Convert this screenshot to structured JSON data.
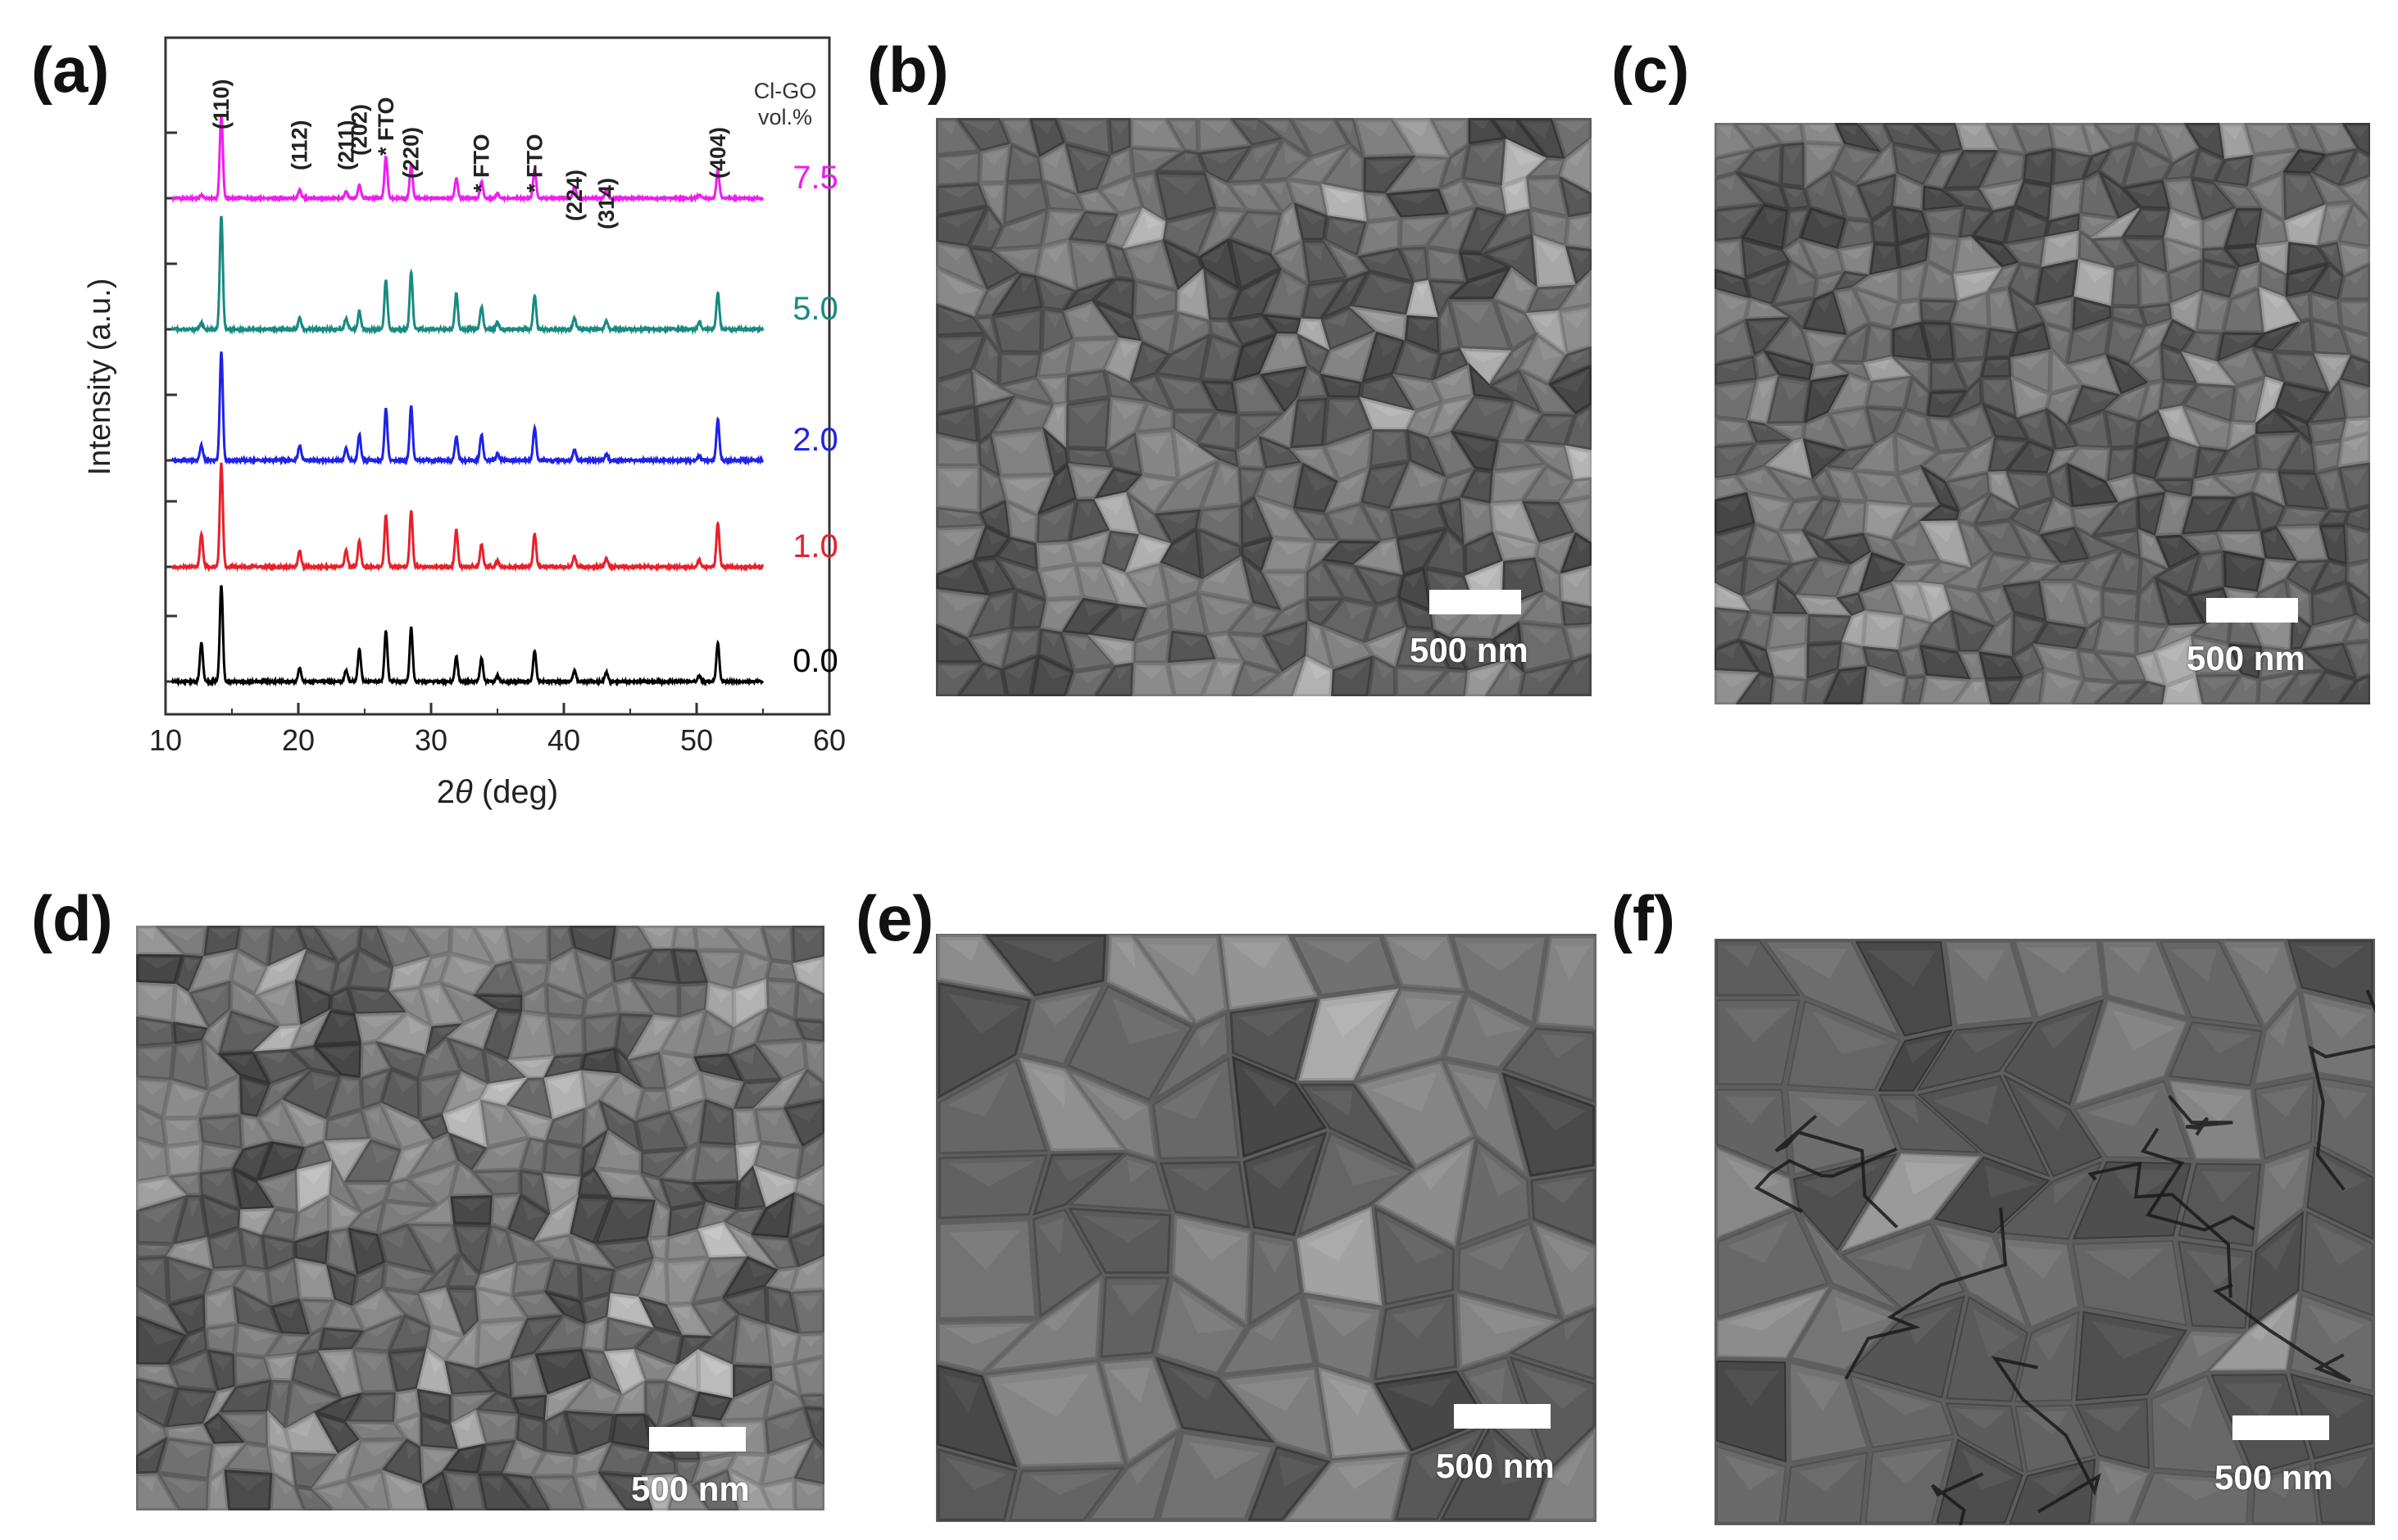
{
  "panel_labels": [
    "(a)",
    "(b)",
    "(c)",
    "(d)",
    "(e)",
    "(f)"
  ],
  "scale_bar_label": "500 nm",
  "chart_data": {
    "type": "line",
    "xlabel_prefix": "2",
    "xlabel_theta": "θ",
    "xlabel_suffix": " (deg)",
    "ylabel": "Intensity (a.u.)",
    "xlim": [
      10,
      60
    ],
    "x_ticks": [
      10,
      20,
      30,
      40,
      50,
      60
    ],
    "legend_title": [
      "Cl-GO",
      "vol.%"
    ],
    "peak_labels": [
      {
        "text": "(110)",
        "x": 14.2
      },
      {
        "text": "(112)",
        "x": 20.1
      },
      {
        "text": "(211)",
        "x": 23.6
      },
      {
        "text": "(202)",
        "x": 24.6
      },
      {
        "text": "* FTO",
        "x": 26.6
      },
      {
        "text": "(220)",
        "x": 28.5
      },
      {
        "text": "* FTO",
        "x": 33.8
      },
      {
        "text": "* FTO",
        "x": 37.8
      },
      {
        "text": "(224)",
        "x": 40.8
      },
      {
        "text": "(314)",
        "x": 43.2
      },
      {
        "text": "(404)",
        "x": 51.6
      }
    ],
    "peaks_x": [
      12.7,
      14.2,
      20.1,
      23.6,
      24.6,
      26.6,
      28.5,
      31.9,
      33.8,
      35.0,
      37.8,
      40.8,
      43.2,
      50.2,
      51.6
    ],
    "series": [
      {
        "name": "0.0",
        "color": "#000000",
        "heights": [
          0.4,
          1.0,
          0.14,
          0.12,
          0.34,
          0.52,
          0.56,
          0.26,
          0.24,
          0.06,
          0.32,
          0.12,
          0.1,
          0.06,
          0.4
        ]
      },
      {
        "name": "1.0",
        "color": "#e8202a",
        "heights": [
          0.32,
          1.0,
          0.16,
          0.16,
          0.26,
          0.5,
          0.54,
          0.36,
          0.22,
          0.06,
          0.32,
          0.1,
          0.08,
          0.06,
          0.42
        ]
      },
      {
        "name": "2.0",
        "color": "#1f22e6",
        "heights": [
          0.14,
          1.0,
          0.14,
          0.12,
          0.24,
          0.48,
          0.5,
          0.22,
          0.24,
          0.06,
          0.3,
          0.1,
          0.06,
          0.04,
          0.38
        ]
      },
      {
        "name": "5.0",
        "color": "#198a80",
        "heights": [
          0.06,
          1.0,
          0.1,
          0.1,
          0.16,
          0.44,
          0.5,
          0.32,
          0.2,
          0.06,
          0.3,
          0.1,
          0.08,
          0.06,
          0.32
        ]
      },
      {
        "name": "7.5",
        "color": "#f01cf0",
        "heights": [
          0.04,
          1.0,
          0.1,
          0.08,
          0.16,
          0.5,
          0.4,
          0.24,
          0.2,
          0.06,
          0.34,
          0.14,
          0.1,
          0.04,
          0.34
        ]
      }
    ]
  }
}
